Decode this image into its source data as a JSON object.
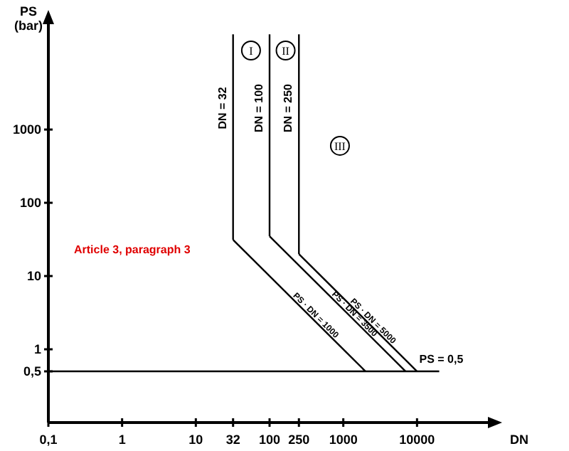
{
  "chart_data": {
    "type": "line",
    "xlabel": "DN",
    "ylabel": "PS\n(bar)",
    "log": "xy",
    "grid": false,
    "marker": "none",
    "line_style": "solid",
    "xlim": [
      0.1,
      100000
    ],
    "ylim": [
      0.1,
      30000
    ],
    "xticks": [
      {
        "value": 0.1,
        "label": "0,1"
      },
      1,
      10,
      32,
      100,
      250,
      1000,
      10000
    ],
    "yticks": [
      {
        "value": 0.5,
        "label": "0,5"
      },
      1,
      10,
      100,
      1000
    ],
    "series": [
      {
        "name": "DN = 32",
        "color": "#000000",
        "x": [
          32,
          32
        ],
        "values": [
          20000,
          31.25
        ]
      },
      {
        "name": "DN = 100",
        "color": "#000000",
        "x": [
          100,
          100
        ],
        "values": [
          20000,
          35
        ]
      },
      {
        "name": "DN = 250",
        "color": "#000000",
        "x": [
          250,
          250
        ],
        "values": [
          20000,
          20
        ]
      },
      {
        "name": "PS · DN = 1000",
        "color": "#000000",
        "x": [
          32,
          2000
        ],
        "values": [
          31.25,
          0.5
        ]
      },
      {
        "name": "PS · DN = 3500",
        "color": "#000000",
        "x": [
          100,
          7000
        ],
        "values": [
          35,
          0.5
        ]
      },
      {
        "name": "PS · DN = 5000",
        "color": "#000000",
        "x": [
          250,
          10000
        ],
        "values": [
          20,
          0.5
        ]
      },
      {
        "name": "PS = 0,5",
        "color": "#000000",
        "x": [
          0.1,
          20000
        ],
        "values": [
          0.5,
          0.5
        ]
      }
    ],
    "annotations": [
      "Article 3, paragraph 3",
      {
        "text": "I",
        "x": 56,
        "y": 12000
      },
      {
        "text": "II",
        "x": 165,
        "y": 12000
      },
      {
        "text": "III",
        "x": 900,
        "y": 600
      }
    ]
  }
}
